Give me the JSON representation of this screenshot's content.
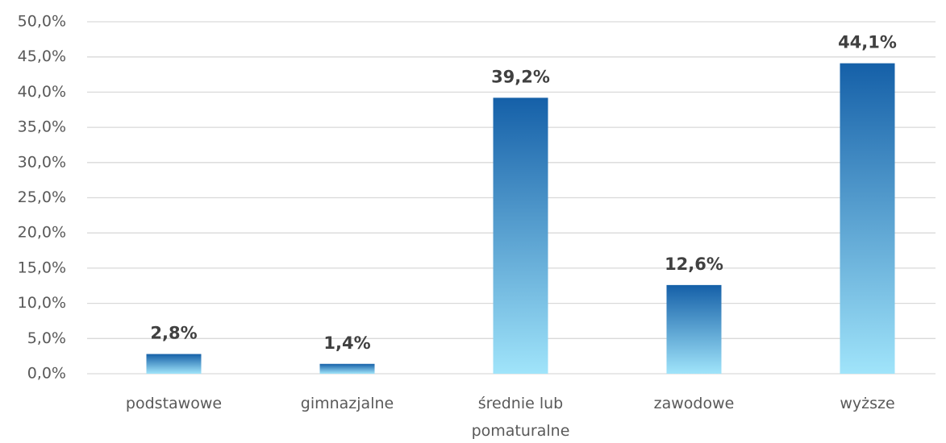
{
  "chart_data": {
    "type": "bar",
    "categories": [
      "podstawowe",
      "gimnazjalne",
      "średnie lub pomaturalne",
      "zawodowe",
      "wyższe"
    ],
    "values": [
      2.8,
      1.4,
      39.2,
      12.6,
      44.1
    ],
    "value_labels": [
      "2,8%",
      "1,4%",
      "39,2%",
      "12,6%",
      "44,1%"
    ],
    "color": [
      "#1560a8",
      "#a0e4fa"
    ],
    "ylim": [
      0,
      50
    ],
    "yticks": [
      {
        "value": 0,
        "label": "0,0%"
      },
      {
        "value": 5,
        "label": "5,0%"
      },
      {
        "value": 10,
        "label": "10,0%"
      },
      {
        "value": 15,
        "label": "15,0%"
      },
      {
        "value": 20,
        "label": "20,0%"
      },
      {
        "value": 25,
        "label": "25,0%"
      },
      {
        "value": 30,
        "label": "30,0%"
      },
      {
        "value": 35,
        "label": "35,0%"
      },
      {
        "value": 40,
        "label": "40,0%"
      },
      {
        "value": 45,
        "label": "45,0%"
      },
      {
        "value": 50,
        "label": "50,0%"
      }
    ],
    "grid": true
  }
}
